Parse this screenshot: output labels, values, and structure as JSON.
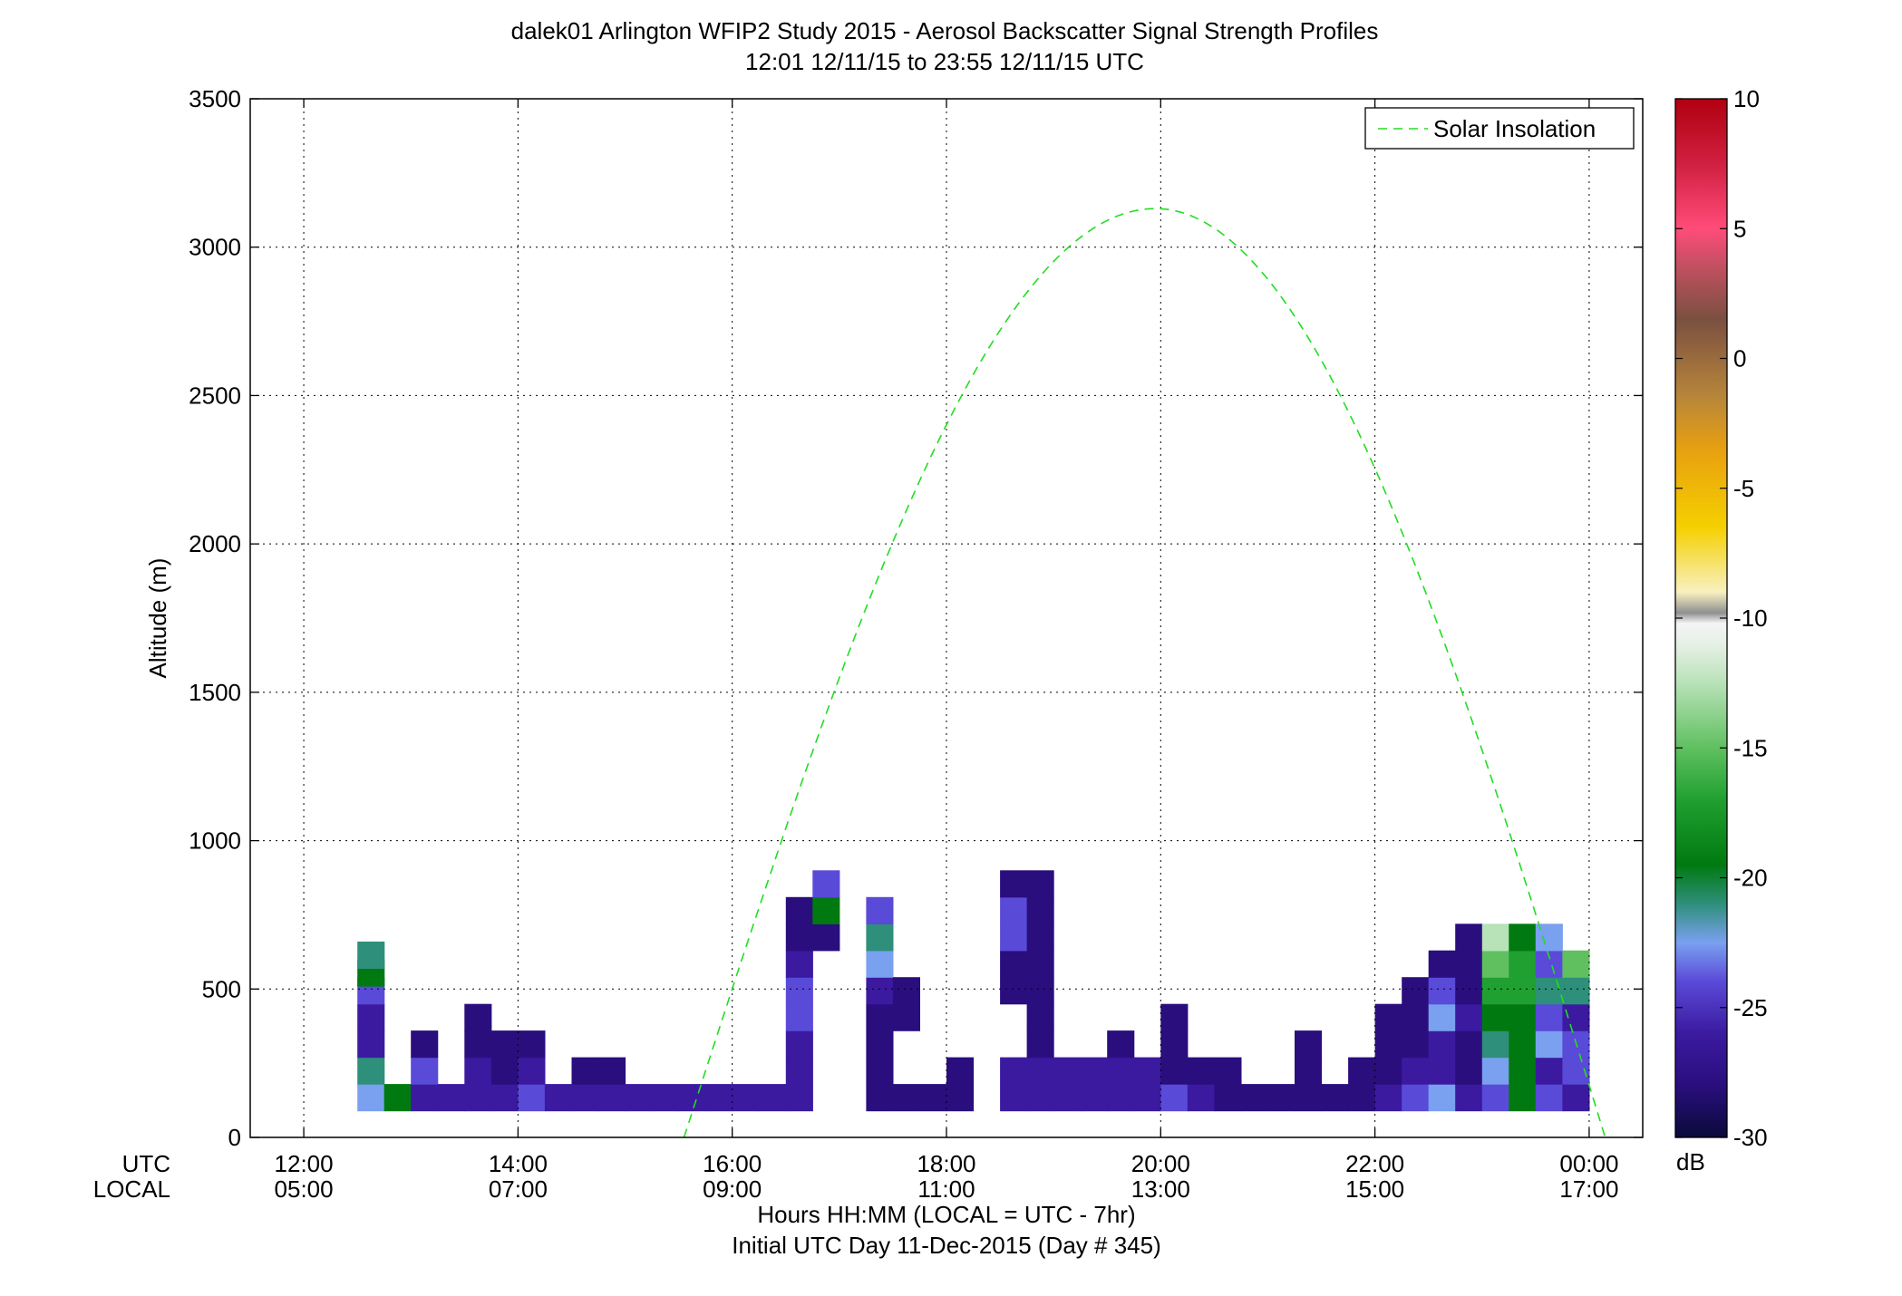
{
  "chart_data": {
    "type": "heatmap",
    "title": "dalek01 Arlington WFIP2 Study 2015 - Aerosol Backscatter Signal Strength Profiles",
    "subtitle": "12:01 12/11/15 to 23:55 12/11/15  UTC",
    "xlabel": "Hours HH:MM  (LOCAL = UTC - 7hr)",
    "xlabel2": "Initial UTC Day 11-Dec-2015 (Day # 345)",
    "ylabel": "Altitude (m)",
    "xlim_hours": [
      11.5,
      24.5
    ],
    "ylim": [
      0,
      3500
    ],
    "grid": true,
    "x_row_labels": [
      "UTC",
      "LOCAL"
    ],
    "x_ticks_utc": [
      "12:00",
      "14:00",
      "16:00",
      "18:00",
      "20:00",
      "22:00",
      "00:00"
    ],
    "x_ticks_local": [
      "05:00",
      "07:00",
      "09:00",
      "11:00",
      "13:00",
      "15:00",
      "17:00"
    ],
    "x_tick_hours": [
      12,
      14,
      16,
      18,
      20,
      22,
      24
    ],
    "y_ticks": [
      "0",
      "500",
      "1000",
      "1500",
      "2000",
      "2500",
      "3000",
      "3500"
    ],
    "y_tick_values": [
      0,
      500,
      1000,
      1500,
      2000,
      2500,
      3000,
      3500
    ],
    "legend": {
      "entries": [
        "Solar Insolation"
      ],
      "placement": "top-right"
    },
    "solar_insolation_peak": {
      "hour": 19.95,
      "altitude": 3130
    },
    "solar_insolation_zero_hours": [
      15.55,
      24.15
    ],
    "colorbar": {
      "ticks": [
        "10",
        "5",
        "0",
        "-5",
        "-10",
        "-15",
        "-20",
        "-25",
        "-30"
      ],
      "tick_values": [
        10,
        5,
        0,
        -5,
        -10,
        -15,
        -20,
        -25,
        -30
      ],
      "range": [
        -30,
        10
      ],
      "unit": "dB",
      "stops": [
        {
          "v": -30,
          "color": "#0a0a3a"
        },
        {
          "v": -28,
          "color": "#2a0e7e"
        },
        {
          "v": -26,
          "color": "#3b1aa0"
        },
        {
          "v": -24,
          "color": "#5a4ad8"
        },
        {
          "v": -22.5,
          "color": "#7aa0f0"
        },
        {
          "v": -21,
          "color": "#2e8f7a"
        },
        {
          "v": -19.5,
          "color": "#007a10"
        },
        {
          "v": -17,
          "color": "#20a030"
        },
        {
          "v": -15,
          "color": "#60c060"
        },
        {
          "v": -12.5,
          "color": "#b8e2b8"
        },
        {
          "v": -11,
          "color": "#e6f0e6"
        },
        {
          "v": -10.2,
          "color": "#f4f4f4"
        },
        {
          "v": -9.8,
          "color": "#909090"
        },
        {
          "v": -9,
          "color": "#f8f0c0"
        },
        {
          "v": -6.5,
          "color": "#f5d000"
        },
        {
          "v": -3.5,
          "color": "#e8a010"
        },
        {
          "v": -1.5,
          "color": "#b8863a"
        },
        {
          "v": 1.5,
          "color": "#7a5040"
        },
        {
          "v": 3.5,
          "color": "#c05060"
        },
        {
          "v": 5,
          "color": "#ff4c7a"
        },
        {
          "v": 7.5,
          "color": "#d02040"
        },
        {
          "v": 10,
          "color": "#b00010"
        }
      ]
    },
    "cell_size": {
      "hours": 0.25,
      "meters": 90
    },
    "cells": [
      [
        12.5,
        90,
        "#7aa0f0"
      ],
      [
        12.5,
        180,
        "#2e8f7a"
      ],
      [
        12.5,
        270,
        "#3b1aa0"
      ],
      [
        12.5,
        360,
        "#3b1aa0"
      ],
      [
        12.5,
        450,
        "#5a4ad8"
      ],
      [
        12.5,
        510,
        "#007a10"
      ],
      [
        12.5,
        570,
        "#2e8f7a"
      ],
      [
        12.75,
        90,
        "#007a10"
      ],
      [
        13,
        90,
        "#3b1aa0"
      ],
      [
        13,
        180,
        "#5a4ad8"
      ],
      [
        13,
        270,
        "#2a0e7e"
      ],
      [
        13.25,
        90,
        "#3b1aa0"
      ],
      [
        13.5,
        90,
        "#3b1aa0"
      ],
      [
        13.5,
        180,
        "#3b1aa0"
      ],
      [
        13.5,
        270,
        "#2a0e7e"
      ],
      [
        13.5,
        360,
        "#2a0e7e"
      ],
      [
        13.75,
        90,
        "#3b1aa0"
      ],
      [
        13.75,
        180,
        "#2a0e7e"
      ],
      [
        13.75,
        270,
        "#2a0e7e"
      ],
      [
        14,
        90,
        "#5a4ad8"
      ],
      [
        14,
        180,
        "#3b1aa0"
      ],
      [
        14,
        270,
        "#2a0e7e"
      ],
      [
        14.25,
        90,
        "#3b1aa0"
      ],
      [
        14.5,
        90,
        "#3b1aa0"
      ],
      [
        14.5,
        180,
        "#2a0e7e"
      ],
      [
        14.75,
        90,
        "#3b1aa0"
      ],
      [
        14.75,
        180,
        "#2a0e7e"
      ],
      [
        15,
        90,
        "#3b1aa0"
      ],
      [
        15.25,
        90,
        "#3b1aa0"
      ],
      [
        15.5,
        90,
        "#3b1aa0"
      ],
      [
        15.75,
        90,
        "#3b1aa0"
      ],
      [
        16,
        90,
        "#3b1aa0"
      ],
      [
        16.25,
        90,
        "#3b1aa0"
      ],
      [
        16.5,
        90,
        "#3b1aa0"
      ],
      [
        16.5,
        180,
        "#3b1aa0"
      ],
      [
        16.5,
        270,
        "#3b1aa0"
      ],
      [
        16.5,
        360,
        "#5a4ad8"
      ],
      [
        16.5,
        450,
        "#5a4ad8"
      ],
      [
        16.5,
        540,
        "#3b1aa0"
      ],
      [
        16.5,
        630,
        "#2a0e7e"
      ],
      [
        16.5,
        720,
        "#2a0e7e"
      ],
      [
        16.75,
        630,
        "#2a0e7e"
      ],
      [
        16.75,
        720,
        "#007a10"
      ],
      [
        16.75,
        810,
        "#5a4ad8"
      ],
      [
        17.25,
        90,
        "#2a0e7e"
      ],
      [
        17.25,
        180,
        "#2a0e7e"
      ],
      [
        17.25,
        270,
        "#2a0e7e"
      ],
      [
        17.25,
        360,
        "#2a0e7e"
      ],
      [
        17.25,
        450,
        "#3b1aa0"
      ],
      [
        17.25,
        540,
        "#7aa0f0"
      ],
      [
        17.25,
        630,
        "#2e8f7a"
      ],
      [
        17.25,
        720,
        "#5a4ad8"
      ],
      [
        17.5,
        90,
        "#2a0e7e"
      ],
      [
        17.5,
        360,
        "#2a0e7e"
      ],
      [
        17.5,
        450,
        "#2a0e7e"
      ],
      [
        17.75,
        90,
        "#2a0e7e"
      ],
      [
        18,
        90,
        "#2a0e7e"
      ],
      [
        18,
        180,
        "#2a0e7e"
      ],
      [
        18.5,
        90,
        "#3b1aa0"
      ],
      [
        18.5,
        180,
        "#3b1aa0"
      ],
      [
        18.5,
        450,
        "#2a0e7e"
      ],
      [
        18.5,
        540,
        "#2a0e7e"
      ],
      [
        18.5,
        630,
        "#5a4ad8"
      ],
      [
        18.5,
        720,
        "#5a4ad8"
      ],
      [
        18.5,
        810,
        "#2a0e7e"
      ],
      [
        18.75,
        90,
        "#3b1aa0"
      ],
      [
        18.75,
        180,
        "#3b1aa0"
      ],
      [
        18.75,
        270,
        "#2a0e7e"
      ],
      [
        18.75,
        360,
        "#2a0e7e"
      ],
      [
        18.75,
        450,
        "#2a0e7e"
      ],
      [
        18.75,
        540,
        "#2a0e7e"
      ],
      [
        18.75,
        630,
        "#2a0e7e"
      ],
      [
        18.75,
        720,
        "#2a0e7e"
      ],
      [
        18.75,
        810,
        "#2a0e7e"
      ],
      [
        19,
        90,
        "#3b1aa0"
      ],
      [
        19,
        180,
        "#3b1aa0"
      ],
      [
        19.25,
        90,
        "#3b1aa0"
      ],
      [
        19.25,
        180,
        "#3b1aa0"
      ],
      [
        19.5,
        90,
        "#3b1aa0"
      ],
      [
        19.5,
        180,
        "#3b1aa0"
      ],
      [
        19.5,
        270,
        "#2a0e7e"
      ],
      [
        19.75,
        90,
        "#3b1aa0"
      ],
      [
        19.75,
        180,
        "#3b1aa0"
      ],
      [
        20,
        90,
        "#5a4ad8"
      ],
      [
        20,
        180,
        "#2a0e7e"
      ],
      [
        20,
        270,
        "#2a0e7e"
      ],
      [
        20,
        360,
        "#2a0e7e"
      ],
      [
        20.25,
        90,
        "#3b1aa0"
      ],
      [
        20.25,
        180,
        "#2a0e7e"
      ],
      [
        20.5,
        90,
        "#2a0e7e"
      ],
      [
        20.5,
        180,
        "#2a0e7e"
      ],
      [
        20.75,
        90,
        "#2a0e7e"
      ],
      [
        21,
        90,
        "#2a0e7e"
      ],
      [
        21.25,
        90,
        "#2a0e7e"
      ],
      [
        21.25,
        180,
        "#2a0e7e"
      ],
      [
        21.25,
        270,
        "#2a0e7e"
      ],
      [
        21.5,
        90,
        "#2a0e7e"
      ],
      [
        21.75,
        90,
        "#2a0e7e"
      ],
      [
        21.75,
        180,
        "#2a0e7e"
      ],
      [
        22,
        90,
        "#3b1aa0"
      ],
      [
        22,
        180,
        "#2a0e7e"
      ],
      [
        22,
        270,
        "#2a0e7e"
      ],
      [
        22,
        360,
        "#2a0e7e"
      ],
      [
        22.25,
        90,
        "#5a4ad8"
      ],
      [
        22.25,
        180,
        "#3b1aa0"
      ],
      [
        22.25,
        270,
        "#2a0e7e"
      ],
      [
        22.25,
        360,
        "#2a0e7e"
      ],
      [
        22.25,
        450,
        "#2a0e7e"
      ],
      [
        22.5,
        90,
        "#7aa0f0"
      ],
      [
        22.5,
        180,
        "#3b1aa0"
      ],
      [
        22.5,
        270,
        "#3b1aa0"
      ],
      [
        22.5,
        360,
        "#7aa0f0"
      ],
      [
        22.5,
        450,
        "#5a4ad8"
      ],
      [
        22.5,
        540,
        "#2a0e7e"
      ],
      [
        22.75,
        90,
        "#3b1aa0"
      ],
      [
        22.75,
        180,
        "#2a0e7e"
      ],
      [
        22.75,
        270,
        "#2a0e7e"
      ],
      [
        22.75,
        360,
        "#3b1aa0"
      ],
      [
        22.75,
        450,
        "#2a0e7e"
      ],
      [
        22.75,
        540,
        "#2a0e7e"
      ],
      [
        22.75,
        630,
        "#2a0e7e"
      ],
      [
        23,
        90,
        "#5a4ad8"
      ],
      [
        23,
        180,
        "#7aa0f0"
      ],
      [
        23,
        270,
        "#2e8f7a"
      ],
      [
        23,
        360,
        "#007a10"
      ],
      [
        23,
        450,
        "#20a030"
      ],
      [
        23,
        540,
        "#60c060"
      ],
      [
        23,
        630,
        "#b8e2b8"
      ],
      [
        23.25,
        90,
        "#007a10"
      ],
      [
        23.25,
        180,
        "#007a10"
      ],
      [
        23.25,
        270,
        "#007a10"
      ],
      [
        23.25,
        360,
        "#007a10"
      ],
      [
        23.25,
        450,
        "#20a030"
      ],
      [
        23.25,
        540,
        "#20a030"
      ],
      [
        23.25,
        630,
        "#007a10"
      ],
      [
        23.5,
        90,
        "#5a4ad8"
      ],
      [
        23.5,
        180,
        "#3b1aa0"
      ],
      [
        23.5,
        270,
        "#7aa0f0"
      ],
      [
        23.5,
        360,
        "#5a4ad8"
      ],
      [
        23.5,
        450,
        "#2e8f7a"
      ],
      [
        23.5,
        540,
        "#5a4ad8"
      ],
      [
        23.5,
        630,
        "#7aa0f0"
      ],
      [
        23.75,
        90,
        "#3b1aa0"
      ],
      [
        23.75,
        180,
        "#5a4ad8"
      ],
      [
        23.75,
        270,
        "#5a4ad8"
      ],
      [
        23.75,
        360,
        "#3b1aa0"
      ],
      [
        23.75,
        450,
        "#2e8f7a"
      ],
      [
        23.75,
        540,
        "#60c060"
      ]
    ]
  }
}
